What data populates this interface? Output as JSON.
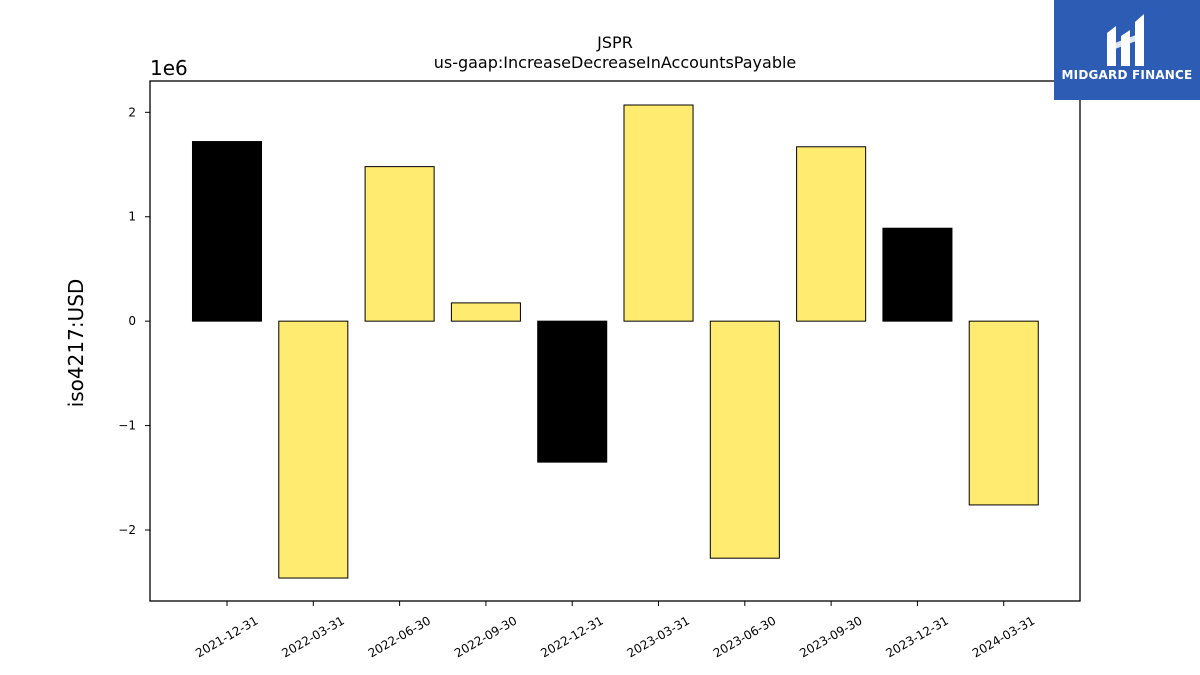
{
  "chart_data": {
    "type": "bar",
    "title": "JSPR",
    "subtitle": "us-gaap:IncreaseDecreaseInAccountsPayable",
    "ylabel": "iso4217:USD",
    "y_offset_label": "1e6",
    "categories": [
      "2021-12-31",
      "2022-03-31",
      "2022-06-30",
      "2022-09-30",
      "2022-12-31",
      "2023-03-31",
      "2023-06-30",
      "2023-09-30",
      "2023-12-31",
      "2024-03-31"
    ],
    "values": [
      1720000,
      -2460000,
      1480000,
      175000,
      -1350000,
      2070000,
      -2270000,
      1670000,
      890000,
      -1760000
    ],
    "bar_colors": [
      "#000000",
      "#ffeb70",
      "#ffeb70",
      "#ffeb70",
      "#000000",
      "#ffeb70",
      "#ffeb70",
      "#ffeb70",
      "#000000",
      "#ffeb70"
    ],
    "yticks": [
      -2000000,
      -1000000,
      0,
      1000000,
      2000000
    ],
    "ytick_labels": [
      "−2",
      "−1",
      "0",
      "1",
      "2"
    ],
    "ylim": [
      -2680000,
      2300000
    ],
    "grid": false,
    "legend": false
  },
  "logo": {
    "text": "MIDGARD FINANCE",
    "color": "#2d5cb4"
  }
}
